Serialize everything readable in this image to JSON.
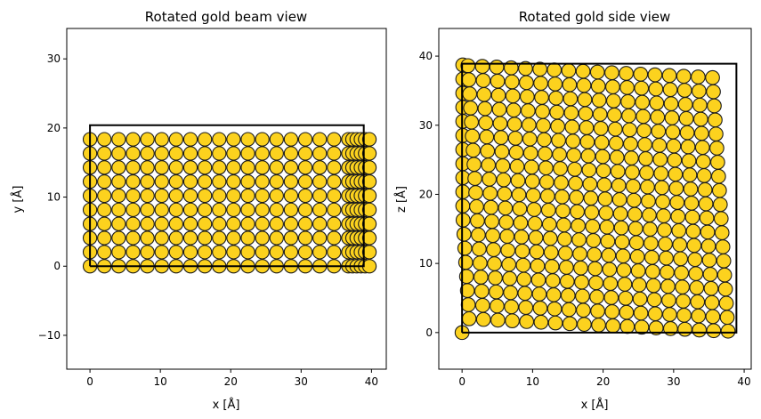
{
  "atom_color": "#fcd21e",
  "atom_edge_color": "#1a1a1a",
  "chart_data": [
    {
      "type": "scatter",
      "title": "Rotated gold beam view",
      "xlabel": "x [Å]",
      "ylabel": "y [Å]",
      "xlim": [
        -3.3,
        42.1
      ],
      "ylim": [
        -14.9,
        34.4
      ],
      "xticks": [
        0,
        10,
        20,
        30,
        40
      ],
      "yticks": [
        -10,
        0,
        10,
        20,
        30
      ],
      "xtick_labels": [
        "0",
        "10",
        "20",
        "30",
        "40"
      ],
      "ytick_labels": [
        "−10",
        "0",
        "10",
        "20",
        "30"
      ],
      "cell_outline": {
        "x": [
          0,
          38.9,
          38.9,
          0,
          0
        ],
        "y": [
          0,
          0,
          20.4,
          20.4,
          0
        ]
      },
      "atoms": {
        "x_start": 0,
        "x_step": 2.04,
        "x_count": 20,
        "y_start": 0,
        "y_step": 2.04,
        "y_count": 10,
        "depth_offsets": [
          0.6,
          1.2,
          1.8,
          2.4
        ],
        "edge_column_x": 37.3
      }
    },
    {
      "type": "scatter",
      "title": "Rotated gold side view",
      "xlabel": "x [Å]",
      "ylabel": "z [Å]",
      "xlim": [
        -3.3,
        41.0
      ],
      "ylim": [
        -5.3,
        44.0
      ],
      "xticks": [
        0,
        10,
        20,
        30,
        40
      ],
      "yticks": [
        0,
        10,
        20,
        30,
        40
      ],
      "xtick_labels": [
        "0",
        "10",
        "20",
        "30",
        "40"
      ],
      "ytick_labels": [
        "0",
        "10",
        "20",
        "30",
        "40"
      ],
      "cell_outline": {
        "x": [
          0,
          38.9,
          38.9,
          0,
          0
        ],
        "y": [
          0,
          0,
          38.9,
          38.9,
          0
        ]
      },
      "atoms": {
        "rows": 19,
        "cols": 19,
        "step": 2.04,
        "shear_x": -0.08,
        "shear_y": -0.1,
        "origin": [
          0,
          0
        ],
        "x_range": [
          0,
          38.9
        ],
        "y_range": [
          0,
          38.9
        ]
      }
    }
  ]
}
